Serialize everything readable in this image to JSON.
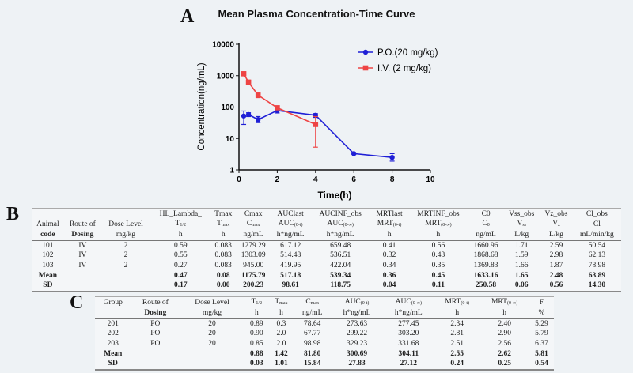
{
  "panels": {
    "a": "A",
    "b": "B",
    "c": "C"
  },
  "chart_data": {
    "type": "line",
    "title": "Mean Plasma Concentration-Time Curve",
    "xlabel": "Time(h)",
    "ylabel": "Concentration(ng/mL)",
    "xlim": [
      0,
      10
    ],
    "ylim": [
      1,
      10000
    ],
    "yscale": "log",
    "xticks": [
      "0",
      "2",
      "4",
      "6",
      "8",
      "10"
    ],
    "yticks": [
      "1",
      "10",
      "100",
      "1000",
      "10000"
    ],
    "legend": "top-right",
    "grid": false,
    "series": [
      {
        "name": "P.O.(20 mg/kg)",
        "color": "#1f1fd6",
        "marker": "circle",
        "x": [
          0.25,
          0.5,
          1,
          2,
          4,
          6,
          8
        ],
        "y": [
          52,
          58,
          40,
          78,
          55,
          3.3,
          2.5
        ],
        "err_low": [
          28,
          50,
          32,
          65,
          47,
          3.1,
          1.9
        ],
        "err_high": [
          75,
          66,
          50,
          92,
          62,
          3.5,
          3.3
        ]
      },
      {
        "name": "I.V. (2 mg/kg)",
        "color": "#ee4444",
        "marker": "square",
        "x": [
          0.25,
          0.5,
          1,
          2,
          4
        ],
        "y": [
          1150,
          620,
          240,
          95,
          28
        ],
        "err_low": [
          1050,
          520,
          200,
          88,
          5.3
        ],
        "err_high": [
          1250,
          720,
          280,
          102,
          50
        ]
      }
    ]
  },
  "table_b": {
    "top": [
      "",
      "",
      "",
      "HL_Lambda_",
      "Tmax",
      "Cmax",
      "AUClast",
      "AUCINF_obs",
      "MRTlast",
      "MRTINF_obs",
      "C0",
      "Vss_obs",
      "Vz_obs",
      "Cl_obs"
    ],
    "head": [
      {
        "t": "Animal",
        "b": 1
      },
      {
        "t": "Route of",
        "b": 1
      },
      {
        "t": "Dose Level",
        "b": 1
      },
      {
        "t": "T",
        "s": "1/2"
      },
      {
        "t": "T",
        "s": "max"
      },
      {
        "t": "C",
        "s": "max"
      },
      {
        "t": "AUC",
        "s": "(0-t)"
      },
      {
        "t": "AUC",
        "s": "(0-∞)"
      },
      {
        "t": "MRT",
        "s": "(0-t)"
      },
      {
        "t": "MRT",
        "s": "(0-∞)"
      },
      {
        "t": "C",
        "s": "0"
      },
      {
        "t": "V",
        "s": "ss"
      },
      {
        "t": "V",
        "s": "z"
      },
      {
        "t": "Cl"
      }
    ],
    "units": [
      {
        "t": "code",
        "b": 1
      },
      {
        "t": "Dosing",
        "b": 1
      },
      {
        "t": "mg/kg"
      },
      {
        "t": "h"
      },
      {
        "t": "h"
      },
      {
        "t": "ng/mL"
      },
      {
        "t": "h*ng/mL"
      },
      {
        "t": "h*ng/mL"
      },
      {
        "t": "h"
      },
      {
        "t": "h"
      },
      {
        "t": "ng/mL"
      },
      {
        "t": "L/kg"
      },
      {
        "t": "L/kg"
      },
      {
        "t": "mL/min/kg"
      }
    ],
    "rows": [
      [
        "101",
        "IV",
        "2",
        "0.59",
        "0.083",
        "1279.29",
        "617.12",
        "659.48",
        "0.41",
        "0.56",
        "1660.96",
        "1.71",
        "2.59",
        "50.54"
      ],
      [
        "102",
        "IV",
        "2",
        "0.55",
        "0.083",
        "1303.09",
        "514.48",
        "536.51",
        "0.32",
        "0.43",
        "1868.68",
        "1.59",
        "2.98",
        "62.13"
      ],
      [
        "103",
        "IV",
        "2",
        "0.27",
        "0.083",
        "945.00",
        "419.95",
        "422.04",
        "0.34",
        "0.35",
        "1369.83",
        "1.66",
        "1.87",
        "78.98"
      ],
      [
        "Mean",
        "",
        "",
        "0.47",
        "0.08",
        "1175.79",
        "517.18",
        "539.34",
        "0.36",
        "0.45",
        "1633.16",
        "1.65",
        "2.48",
        "63.89"
      ],
      [
        "SD",
        "",
        "",
        "0.17",
        "0.00",
        "200.23",
        "98.61",
        "118.75",
        "0.04",
        "0.11",
        "250.58",
        "0.06",
        "0.56",
        "14.30"
      ]
    ]
  },
  "table_c": {
    "head": [
      {
        "t": "Group",
        "b": 1
      },
      {
        "t": "Route of",
        "b": 1
      },
      {
        "t": "Dose Level",
        "b": 1
      },
      {
        "t": "T",
        "s": "1/2"
      },
      {
        "t": "T",
        "s": "max"
      },
      {
        "t": "C",
        "s": "max"
      },
      {
        "t": "AUC",
        "s": "(0-t)"
      },
      {
        "t": "AUC",
        "s": "(0-∞)"
      },
      {
        "t": "MRT",
        "s": "(0-t)"
      },
      {
        "t": "MRT",
        "s": "(0-∞)"
      },
      {
        "t": "F"
      }
    ],
    "units": [
      {
        "t": "",
        "b": 1
      },
      {
        "t": "Dosing",
        "b": 1
      },
      {
        "t": "mg/kg"
      },
      {
        "t": "h"
      },
      {
        "t": "h"
      },
      {
        "t": "ng/mL"
      },
      {
        "t": "h*ng/mL"
      },
      {
        "t": "h*ng/mL"
      },
      {
        "t": "h"
      },
      {
        "t": "h"
      },
      {
        "t": "%"
      }
    ],
    "rows": [
      [
        "201",
        "PO",
        "20",
        "0.89",
        "0.3",
        "78.64",
        "273.63",
        "277.45",
        "2.34",
        "2.40",
        "5.29"
      ],
      [
        "202",
        "PO",
        "20",
        "0.90",
        "2.0",
        "67.77",
        "299.22",
        "303.20",
        "2.81",
        "2.90",
        "5.79"
      ],
      [
        "203",
        "PO",
        "20",
        "0.85",
        "2.0",
        "98.98",
        "329.23",
        "331.68",
        "2.51",
        "2.56",
        "6.37"
      ],
      [
        "Mean",
        "",
        "",
        "0.88",
        "1.42",
        "81.80",
        "300.69",
        "304.11",
        "2.55",
        "2.62",
        "5.81"
      ],
      [
        "SD",
        "",
        "",
        "0.03",
        "1.01",
        "15.84",
        "27.83",
        "27.12",
        "0.24",
        "0.25",
        "0.54"
      ]
    ]
  }
}
